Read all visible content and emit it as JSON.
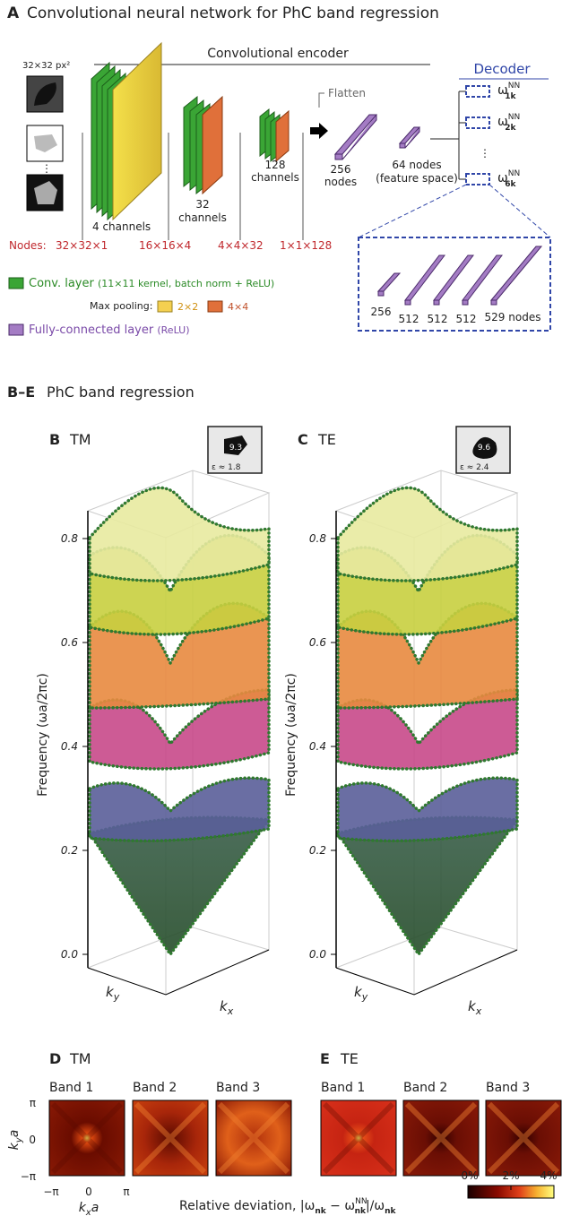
{
  "panel_a": {
    "label": "A",
    "title": "Convolutional neural network for PhC band regression",
    "input_size": "32×32 px²",
    "encoder_label": "Convolutional encoder",
    "decoder_label": "Decoder",
    "flatten": "Flatten",
    "layer_labels": [
      "4 channels",
      "32",
      "channels",
      "128",
      "channels",
      "256",
      "nodes",
      "64 nodes",
      "(feature space)"
    ],
    "outputs": [
      {
        "base": "ω",
        "sup": "NN",
        "sub": "1k"
      },
      {
        "base": "ω",
        "sup": "NN",
        "sub": "2k"
      },
      {
        "base": "ω",
        "sup": "NN",
        "sub": "6k"
      }
    ],
    "nodes_label": "Nodes:",
    "nodes": [
      "32×32×1",
      "16×16×4",
      "4×4×32",
      "1×1×128"
    ],
    "decoder_nodes": [
      "256",
      "512",
      "512",
      "512",
      "529 nodes"
    ],
    "legend": {
      "conv": "Conv. layer",
      "conv_note": "(11×11 kernel, batch norm + ReLU)",
      "max_pooling": "Max pooling:",
      "pool": [
        "2×2",
        "4×4"
      ],
      "fc": "Fully-connected layer",
      "fc_note": "(ReLU)"
    }
  },
  "section": {
    "label": "B–E",
    "title": "PhC band regression"
  },
  "panels_3d": [
    {
      "label": "B",
      "mode": "TM",
      "inset_value": "9.3",
      "epsilon": "ε ≈ 1.8"
    },
    {
      "label": "C",
      "mode": "TE",
      "inset_value": "9.6",
      "epsilon": "ε ≈ 2.4"
    }
  ],
  "axis_3d": {
    "ylabel": "Frequency (ωa/2πc)",
    "ticks": [
      "0.0",
      "0.2",
      "0.4",
      "0.6",
      "0.8"
    ],
    "ky": {
      "base": "k",
      "sub": "y"
    },
    "kx": {
      "base": "k",
      "sub": "x"
    }
  },
  "panels_2d": [
    {
      "label": "D",
      "mode": "TM"
    },
    {
      "label": "E",
      "mode": "TE"
    }
  ],
  "bands": [
    "Band 1",
    "Band 2",
    "Band 3"
  ],
  "axis_2d": {
    "yticks": [
      "π",
      "0",
      "−π"
    ],
    "xticks": [
      "−π",
      "0",
      "π"
    ],
    "ylabel": {
      "base": "k",
      "sub": "y",
      "tail": "a"
    },
    "xlabel": {
      "base": "k",
      "sub": "x",
      "tail": "a"
    }
  },
  "colorbar": {
    "ticks": [
      "0%",
      "2%",
      "4%"
    ],
    "label": {
      "a": "Relative deviation, |ω",
      "s1": "nk",
      "b": " − ω",
      "sup": "NN",
      "s2": "nk",
      "c": "|/ω",
      "s3": "nk"
    }
  }
}
